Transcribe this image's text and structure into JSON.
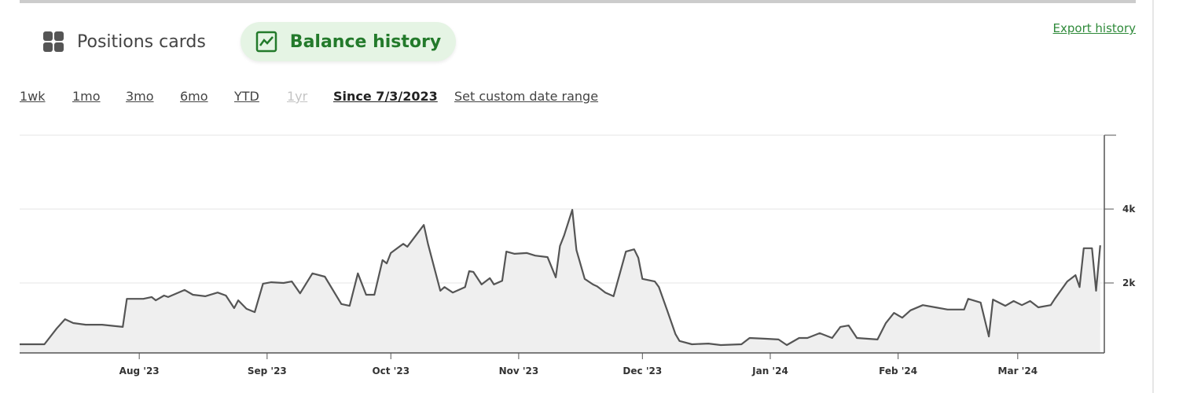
{
  "tabs": [
    "Positions cards",
    "Balance history"
  ],
  "export_link": "Export history",
  "ranges": [
    "1wk",
    "1mo",
    "3mo",
    "6mo",
    "YTD",
    "1yr",
    "Since 7/3/2023",
    "Set custom date range"
  ],
  "chart_data": {
    "type": "area",
    "x": [
      0,
      6,
      9,
      11,
      13,
      16,
      20,
      25,
      26,
      30,
      32,
      33,
      35,
      36,
      40,
      42,
      45,
      48,
      50,
      52,
      53,
      55,
      57,
      59,
      61,
      64,
      66,
      68,
      71,
      74,
      78,
      80,
      82,
      84,
      86,
      88,
      89,
      90,
      93,
      94,
      98,
      99,
      102,
      103,
      105,
      108,
      109,
      110,
      112,
      114,
      115,
      117,
      118,
      120,
      123,
      125,
      128,
      130,
      131,
      132,
      134,
      135,
      137,
      139,
      140,
      142,
      144,
      147,
      149,
      150,
      151,
      154,
      155,
      157,
      159,
      160,
      163,
      167,
      170,
      175,
      177,
      181,
      184,
      186,
      189,
      191,
      194,
      197,
      199,
      201,
      203,
      208,
      210,
      212,
      214,
      216,
      219,
      222,
      225,
      229,
      230,
      233,
      235,
      236,
      239,
      241,
      243,
      245,
      247,
      250,
      251,
      254,
      256,
      257,
      258,
      260,
      261,
      262
    ],
    "values": [
      340,
      340,
      770,
      1020,
      915,
      870,
      870,
      810,
      1570,
      1570,
      1620,
      1530,
      1660,
      1620,
      1810,
      1680,
      1640,
      1740,
      1660,
      1320,
      1530,
      1300,
      1210,
      1980,
      2020,
      2000,
      2040,
      1720,
      2260,
      2170,
      1430,
      1380,
      2260,
      1680,
      1680,
      2620,
      2530,
      2810,
      3060,
      2980,
      3570,
      3060,
      1790,
      1890,
      1740,
      1890,
      2320,
      2300,
      1960,
      2130,
      1960,
      2060,
      2850,
      2790,
      2810,
      2740,
      2700,
      2150,
      3000,
      3280,
      3980,
      2890,
      2110,
      1960,
      1910,
      1740,
      1640,
      2850,
      2910,
      2680,
      2110,
      2040,
      1890,
      1260,
      620,
      430,
      340,
      360,
      320,
      340,
      510,
      490,
      470,
      320,
      510,
      510,
      640,
      510,
      810,
      850,
      510,
      470,
      910,
      1190,
      1060,
      1260,
      1400,
      1340,
      1280,
      1280,
      1570,
      1470,
      550,
      1550,
      1380,
      1510,
      1400,
      1510,
      1340,
      1400,
      1570,
      2040,
      2210,
      1890,
      2940,
      2940,
      1790,
      3020
    ],
    "color": "#555555",
    "fill": "#efefef",
    "xlim": [
      0,
      263
    ],
    "ylim": [
      0,
      6000
    ],
    "xticks": [
      {
        "value": 29,
        "label": "Aug '23"
      },
      {
        "value": 60,
        "label": "Sep '23"
      },
      {
        "value": 90,
        "label": "Oct '23"
      },
      {
        "value": 121,
        "label": "Nov '23"
      },
      {
        "value": 151,
        "label": "Dec '23"
      },
      {
        "value": 182,
        "label": "Jan '24"
      },
      {
        "value": 213,
        "label": "Feb '24"
      },
      {
        "value": 242,
        "label": "Mar '24"
      }
    ],
    "yticks": [
      {
        "value": 2000,
        "label": "2k"
      },
      {
        "value": 4000,
        "label": "4k"
      }
    ],
    "grid": true
  }
}
